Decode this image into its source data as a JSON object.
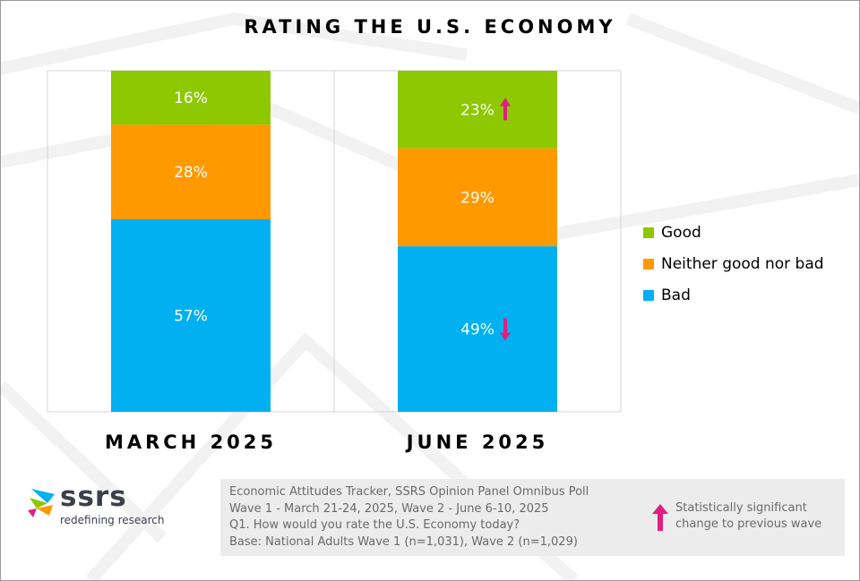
{
  "title": "RATING THE U.S. ECONOMY",
  "colors": {
    "good": "#8dc800",
    "neither": "#ff9900",
    "bad": "#00b0f0",
    "significance_arrow": "#e01e83",
    "logo_text": "#3b3f4a"
  },
  "chart_data": {
    "type": "bar",
    "stacked": true,
    "title": "RATING THE U.S. ECONOMY",
    "categories": [
      "MARCH 2025",
      "JUNE 2025"
    ],
    "series": [
      {
        "name": "Good",
        "values": [
          16,
          23
        ],
        "labels": [
          "16%",
          "23%"
        ],
        "color": "#8dc800"
      },
      {
        "name": "Neither good nor bad",
        "values": [
          28,
          29
        ],
        "labels": [
          "28%",
          "29%"
        ],
        "color": "#ff9900"
      },
      {
        "name": "Bad",
        "values": [
          57,
          49
        ],
        "labels": [
          "57%",
          "49%"
        ],
        "color": "#00b0f0"
      }
    ],
    "significance": [
      {
        "category": "JUNE 2025",
        "series": "Good",
        "direction": "up"
      },
      {
        "category": "JUNE 2025",
        "series": "Bad",
        "direction": "down"
      }
    ],
    "legend_position": "right",
    "grid": false
  },
  "legend": {
    "items": [
      {
        "label": "Good",
        "color": "#8dc800"
      },
      {
        "label": "Neither good nor bad",
        "color": "#ff9900"
      },
      {
        "label": "Bad",
        "color": "#00b0f0"
      }
    ]
  },
  "logo": {
    "wordmark": "ssrs",
    "tagline": "redefining research"
  },
  "notes": {
    "lines": [
      "Economic Attitudes Tracker, SSRS Opinion Panel Omnibus Poll",
      "Wave 1 - March 21-24, 2025, Wave 2 - June 6-10, 2025",
      "Q1. How would you rate the U.S. Economy today?",
      "Base: National Adults Wave 1 (n=1,031), Wave 2 (n=1,029)"
    ],
    "significance_key": "Statistically significant change to previous wave"
  }
}
